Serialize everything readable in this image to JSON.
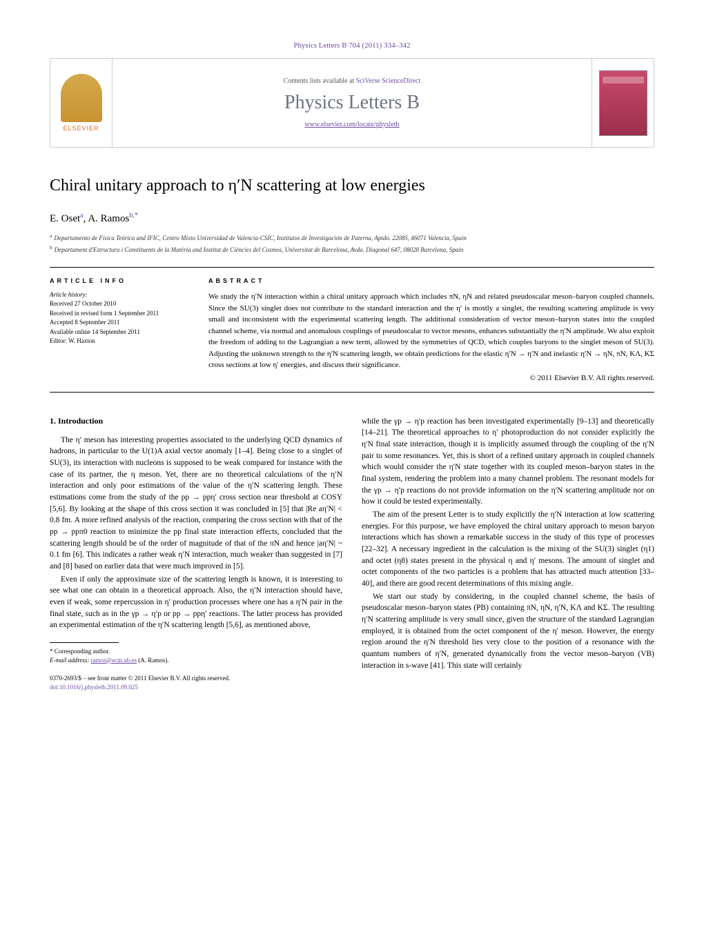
{
  "journal_ref": "Physics Letters B 704 (2011) 334–342",
  "header": {
    "contents_prefix": "Contents lists available at ",
    "contents_link": "SciVerse ScienceDirect",
    "journal_name": "Physics Letters B",
    "journal_url": "www.elsevier.com/locate/physletb",
    "elsevier": "ELSEVIER"
  },
  "title": "Chiral unitary approach to η′N scattering at low energies",
  "authors_html": "E. Oset",
  "author1": "E. Oset",
  "author1_sup": "a",
  "author2": "A. Ramos",
  "author2_sup": "b,*",
  "affiliations": {
    "a": "Departamento de Física Teórica and IFIC, Centro Mixto Universidad de Valencia-CSIC, Institutos de Investigación de Paterna, Aptdo. 22085, 46071 Valencia, Spain",
    "b": "Departament d'Estructura i Constituents de la Matèria and Institut de Ciències del Cosmos, Universitat de Barcelona, Avda. Diagonal 647, 08028 Barcelona, Spain"
  },
  "article_info_label": "ARTICLE INFO",
  "abstract_label": "ABSTRACT",
  "history": {
    "label": "Article history:",
    "received": "Received 27 October 2010",
    "revised": "Received in revised form 1 September 2011",
    "accepted": "Accepted 8 September 2011",
    "online": "Available online 14 September 2011",
    "editor": "Editor: W. Haxton"
  },
  "abstract": "We study the η′N interaction within a chiral unitary approach which includes πN, ηN and related pseudoscalar meson–baryon coupled channels. Since the SU(3) singlet does not contribute to the standard interaction and the η′ is mostly a singlet, the resulting scattering amplitude is very small and inconsistent with the experimental scattering length. The additional consideration of vector meson–baryon states into the coupled channel scheme, via normal and anomalous couplings of pseudoscalar to vector mesons, enhances substantially the η′N amplitude. We also exploit the freedom of adding to the Lagrangian a new term, allowed by the symmetries of QCD, which couples baryons to the singlet meson of SU(3). Adjusting the unknown strength to the η′N scattering length, we obtain predictions for the elastic η′N → η′N and inelastic η′N → ηN, πN, KΛ, KΣ cross sections at low η′ energies, and discuss their significance.",
  "copyright": "© 2011 Elsevier B.V. All rights reserved.",
  "section1_heading": "1. Introduction",
  "col1_p1": "The η′ meson has interesting properties associated to the underlying QCD dynamics of hadrons, in particular to the U(1)A axial vector anomaly [1–4]. Being close to a singlet of SU(3), its interaction with nucleons is supposed to be weak compared for instance with the case of its partner, the η meson. Yet, there are no theoretical calculations of the η′N interaction and only poor estimations of the value of the η′N scattering length. These estimations come from the study of the pp → ppη′ cross section near threshold at COSY [5,6]. By looking at the shape of this cross section it was concluded in [5] that |Re aη′N| < 0.8 fm. A more refined analysis of the reaction, comparing the cross section with that of the pp → ppπ0 reaction to minimize the pp final state interaction effects, concluded that the scattering length should be of the order of magnitude of that of the πN and hence |aη′N| ~ 0.1 fm [6]. This indicates a rather weak η′N interaction, much weaker than suggested in [7] and [8] based on earlier data that were much improved in [5].",
  "col1_p2": "Even if only the approximate size of the scattering length is known, it is interesting to see what one can obtain in a theoretical approach. Also, the η′N interaction should have, even if weak, some repercussion in η′ production processes where one has a η′N pair in the final state, such as in the γp → η′p or pp → ppη′ reactions. The latter process has provided an experimental estimation of the η′N scattering length [5,6], as mentioned above,",
  "col2_p1": "while the γp → η′p reaction has been investigated experimentally [9–13] and theoretically [14–21]. The theoretical approaches to η′ photoproduction do not consider explicitly the η′N final state interaction, though it is implicitly assumed through the coupling of the η′N pair to some resonances. Yet, this is short of a refined unitary approach in coupled channels which would consider the η′N state together with its coupled meson–baryon states in the final system, rendering the problem into a many channel problem. The resonant models for the γp → η′p reactions do not provide information on the η′N scattering amplitude nor on how it could be tested experimentally.",
  "col2_p2": "The aim of the present Letter is to study explicitly the η′N interaction at low scattering energies. For this purpose, we have employed the chiral unitary approach to meson baryon interactions which has shown a remarkable success in the study of this type of processes [22–32]. A necessary ingredient in the calculation is the mixing of the SU(3) singlet (η1) and octet (η8) states present in the physical η and η′ mesons. The amount of singlet and octet components of the two particles is a problem that has attracted much attention [33–40], and there are good recent determinations of this mixing angle.",
  "col2_p3": "We start our study by considering, in the coupled channel scheme, the basis of pseudoscalar meson–baryon states (PB) containing πN, ηN, η′N, KΛ and KΣ. The resulting η′N scattering amplitude is very small since, given the structure of the standard Lagrangian employed, it is obtained from the octet component of the η′ meson. However, the energy region around the η′N threshold lies very close to the position of a resonance with the quantum numbers of η′N, generated dynamically from the vector meson–baryon (VB) interaction in s-wave [41]. This state will certainly",
  "footnote": {
    "corresp": "* Corresponding author.",
    "email_label": "E-mail address:",
    "email": "ramos@ecm.ub.es",
    "email_name": "(A. Ramos)."
  },
  "doi": {
    "line1": "0370-2693/$ – see front matter © 2011 Elsevier B.V. All rights reserved.",
    "line2": "doi:10.1016/j.physletb.2011.09.025"
  },
  "colors": {
    "link": "#6b4ba3",
    "text": "#000000",
    "border": "#cccccc",
    "elsevier_orange": "#e8651f",
    "journal_gray": "#6b7280"
  }
}
